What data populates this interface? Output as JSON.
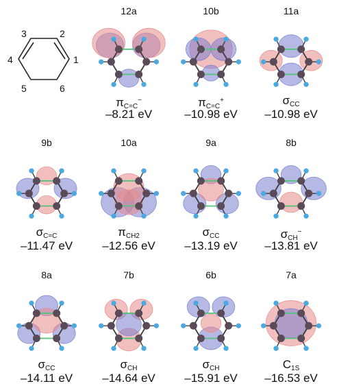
{
  "molecule_labels": [
    "1",
    "2",
    "3",
    "4",
    "5",
    "6"
  ],
  "orbitals": [
    {
      "id": "12a",
      "sym_main": "π",
      "sym_sub": "C=C",
      "sym_sup": "−",
      "energy": "–8.21 eV"
    },
    {
      "id": "10b",
      "sym_main": "π",
      "sym_sub": "C=C",
      "sym_sup": "+",
      "energy": "–10.98 eV"
    },
    {
      "id": "11a",
      "sym_main": "σ",
      "sym_sub": "CC",
      "sym_sup": "",
      "energy": "–10.98 eV"
    },
    {
      "id": "9b",
      "sym_main": "σ",
      "sym_sub": "C=C",
      "sym_sup": "",
      "energy": "–11.47 eV"
    },
    {
      "id": "10a",
      "sym_main": "π",
      "sym_sub": "CH2",
      "sym_sup": "",
      "energy": "–12.56 eV"
    },
    {
      "id": "9a",
      "sym_main": "σ",
      "sym_sub": "CC",
      "sym_sup": "",
      "energy": "–13.19 eV"
    },
    {
      "id": "8b",
      "sym_main": "σ",
      "sym_sub": "CH",
      "sym_sup": "−",
      "energy": "–13.81 eV"
    },
    {
      "id": "8a",
      "sym_main": "σ",
      "sym_sub": "CC",
      "sym_sup": "",
      "energy": "–14.11 eV"
    },
    {
      "id": "7b",
      "sym_main": "σ",
      "sym_sub": "CH",
      "sym_sup": "",
      "energy": "–14.64 eV"
    },
    {
      "id": "6b",
      "sym_main": "σ",
      "sym_sub": "CH",
      "sym_sup": "",
      "energy": "–15.91 eV"
    },
    {
      "id": "7a",
      "sym_main": "C",
      "sym_sub": "1S",
      "sym_sup": "",
      "energy": "–16.53 eV"
    }
  ],
  "colors": {
    "positive_lobe": "#e88a8a",
    "negative_lobe": "#7b7fd0",
    "carbon": "#5b4a58",
    "hydrogen": "#4aa9e0",
    "bond": "#3a3a3a",
    "highlight_bond": "#53c27a"
  }
}
